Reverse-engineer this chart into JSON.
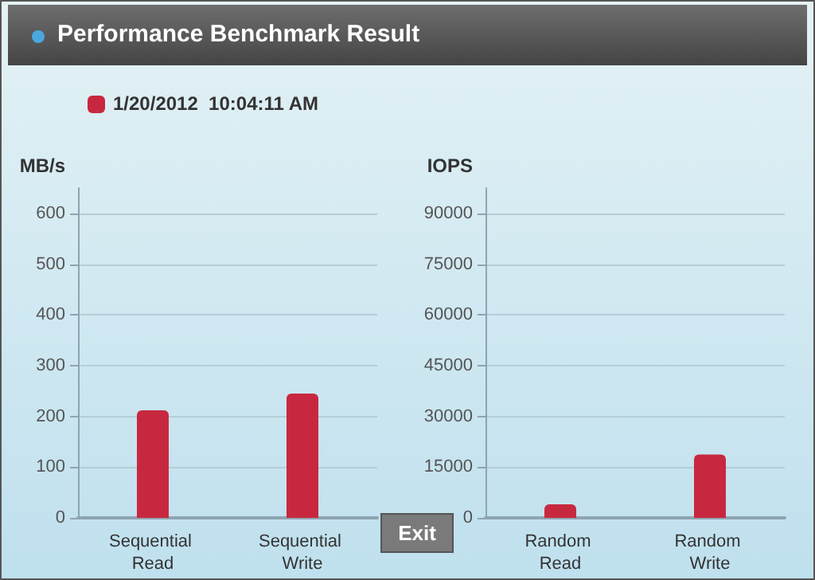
{
  "chart_data": [
    {
      "type": "bar",
      "title": "Performance Benchmark Result",
      "ylabel": "MB/s",
      "categories": [
        "Sequential Read",
        "Sequential Write"
      ],
      "series": [
        {
          "name": "1/20/2012  10:04:11 AM",
          "color": "#c8283f",
          "values": [
            212,
            245
          ]
        }
      ],
      "ylim": [
        0,
        650
      ],
      "yticks": [
        0,
        100,
        200,
        300,
        400,
        500,
        600
      ],
      "grid": "y",
      "legend": "top left"
    },
    {
      "type": "bar",
      "ylabel": "IOPS",
      "categories": [
        "Random Read",
        "Random Write"
      ],
      "series": [
        {
          "color": "#c8283f",
          "values": [
            4000,
            18700
          ]
        }
      ],
      "ylim": [
        0,
        97500
      ],
      "yticks": [
        0,
        15000,
        30000,
        45000,
        60000,
        75000,
        90000
      ],
      "grid": "y",
      "annotations": [
        "Exit"
      ]
    }
  ]
}
